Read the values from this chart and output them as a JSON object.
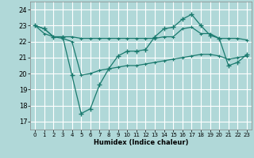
{
  "xlabel": "Humidex (Indice chaleur)",
  "background_color": "#b0d8d8",
  "grid_color": "#ffffff",
  "line_color": "#1a7a6e",
  "xlim": [
    -0.5,
    23.5
  ],
  "ylim": [
    16.5,
    24.5
  ],
  "yticks": [
    17,
    18,
    19,
    20,
    21,
    22,
    23,
    24
  ],
  "xticks": [
    0,
    1,
    2,
    3,
    4,
    5,
    6,
    7,
    8,
    9,
    10,
    11,
    12,
    13,
    14,
    15,
    16,
    17,
    18,
    19,
    20,
    21,
    22,
    23
  ],
  "line1_x": [
    0,
    1,
    2,
    3,
    4,
    5,
    6,
    7,
    8,
    9,
    10,
    11,
    12,
    13,
    14,
    15,
    16,
    17,
    18,
    19,
    20,
    21,
    22,
    23
  ],
  "line1_y": [
    23.0,
    22.8,
    22.3,
    22.3,
    22.3,
    22.2,
    22.2,
    22.2,
    22.2,
    22.2,
    22.2,
    22.2,
    22.2,
    22.2,
    22.3,
    22.3,
    22.8,
    22.9,
    22.5,
    22.5,
    22.2,
    22.2,
    22.2,
    22.1
  ],
  "line2_x": [
    0,
    1,
    2,
    3,
    4,
    5,
    6,
    7,
    8,
    9,
    10,
    11,
    12,
    13,
    14,
    15,
    16,
    17,
    18,
    19,
    20,
    21,
    22,
    23
  ],
  "line2_y": [
    23.0,
    22.8,
    22.3,
    22.3,
    19.9,
    17.5,
    17.8,
    19.3,
    20.3,
    21.1,
    21.4,
    21.4,
    21.5,
    22.3,
    22.8,
    22.9,
    23.4,
    23.7,
    23.0,
    22.4,
    22.2,
    20.5,
    20.7,
    21.2
  ],
  "line3_x": [
    0,
    1,
    2,
    3,
    4,
    5,
    6,
    7,
    8,
    9,
    10,
    11,
    12,
    13,
    14,
    15,
    16,
    17,
    18,
    19,
    20,
    21,
    22,
    23
  ],
  "line3_y": [
    23.0,
    22.5,
    22.3,
    22.2,
    22.0,
    19.9,
    20.0,
    20.2,
    20.3,
    20.4,
    20.5,
    20.5,
    20.6,
    20.7,
    20.8,
    20.9,
    21.0,
    21.1,
    21.2,
    21.2,
    21.1,
    20.9,
    21.0,
    21.1
  ]
}
